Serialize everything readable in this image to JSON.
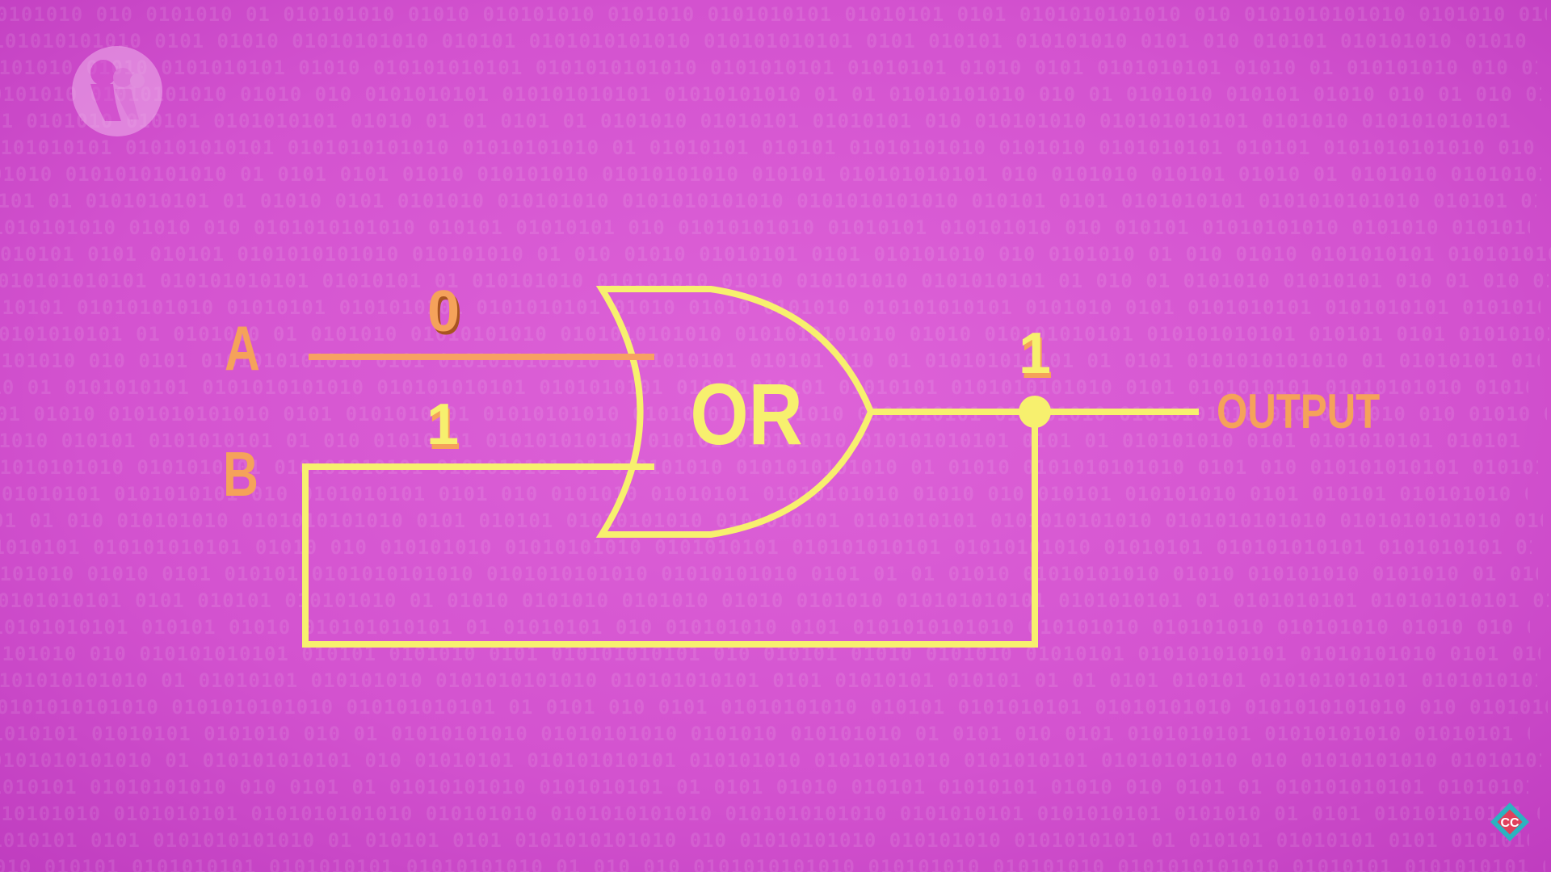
{
  "diagram": {
    "gate_label": "OR",
    "inputs": [
      {
        "name": "A",
        "value": "0"
      },
      {
        "name": "B",
        "value": "1"
      }
    ],
    "output": {
      "name": "OUTPUT",
      "value": "1"
    }
  },
  "background_digits": "0101",
  "colors": {
    "background_center": "#dd5fd6",
    "background_edge": "#c03ec0",
    "wire_yellow": "#f7f06e",
    "label_orange": "#f5a25a",
    "wire_orange": "#f7a163"
  },
  "icons": {
    "logo": "pbs-logo-icon",
    "corner_badge": "crash-course-cc-badge-icon"
  },
  "corner_badge_text": "CC"
}
